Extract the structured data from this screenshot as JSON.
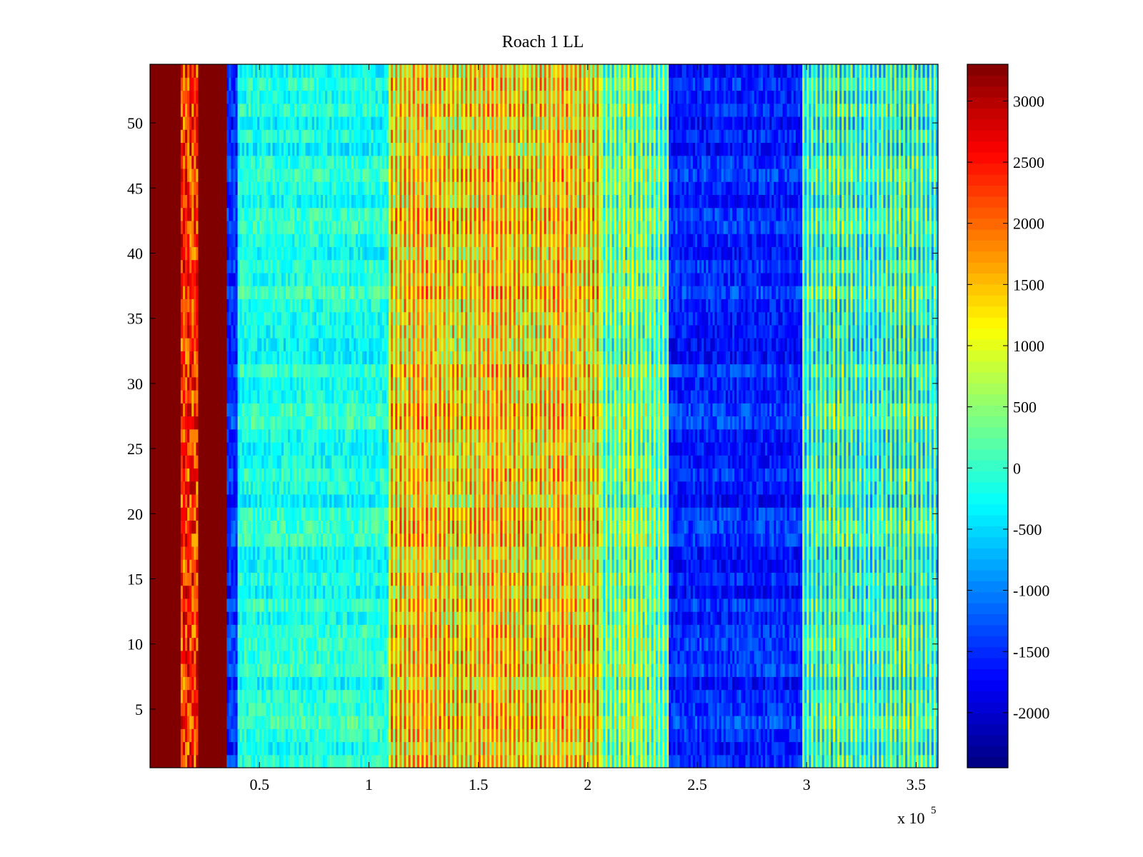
{
  "chart_data": {
    "type": "heatmap",
    "title": "Roach 1 LL",
    "xlabel": "",
    "ylabel": "",
    "x_multiplier_label": "x 10",
    "x_multiplier_exponent": "5",
    "xlim": [
      0,
      3.6
    ],
    "ylim": [
      0.5,
      54.5
    ],
    "x_ticks": [
      0.5,
      1,
      1.5,
      2,
      2.5,
      3,
      3.5
    ],
    "x_tick_labels": [
      "0.5",
      "1",
      "1.5",
      "2",
      "2.5",
      "3",
      "3.5"
    ],
    "y_ticks": [
      5,
      10,
      15,
      20,
      25,
      30,
      35,
      40,
      45,
      50
    ],
    "y_tick_labels": [
      "5",
      "10",
      "15",
      "20",
      "25",
      "30",
      "35",
      "40",
      "45",
      "50"
    ],
    "rows": 54,
    "colormap": "jet",
    "clim": [
      -2450,
      3300
    ],
    "colorbar": {
      "ticks": [
        -2000,
        -1500,
        -1000,
        -500,
        0,
        500,
        1000,
        1500,
        2000,
        2500,
        3000
      ],
      "tick_labels": [
        "-2000",
        "-1500",
        "-1000",
        "-500",
        "0",
        "500",
        "1000",
        "1500",
        "2000",
        "2500",
        "3000"
      ]
    },
    "x_regions": [
      {
        "x": [
          0.0,
          0.14
        ],
        "level": 3300
      },
      {
        "x": [
          0.14,
          0.22
        ],
        "level": 2300
      },
      {
        "x": [
          0.22,
          0.35
        ],
        "level": 3300
      },
      {
        "x": [
          0.35,
          0.4
        ],
        "level": -1500
      },
      {
        "x": [
          0.4,
          1.09
        ],
        "level": -150
      },
      {
        "x": [
          1.09,
          2.06
        ],
        "level": 700
      },
      {
        "x": [
          2.06,
          2.37
        ],
        "level": -300
      },
      {
        "x": [
          2.37,
          2.98
        ],
        "level": -1550
      },
      {
        "x": [
          2.98,
          3.6
        ],
        "level": -600
      }
    ],
    "grid": false
  }
}
